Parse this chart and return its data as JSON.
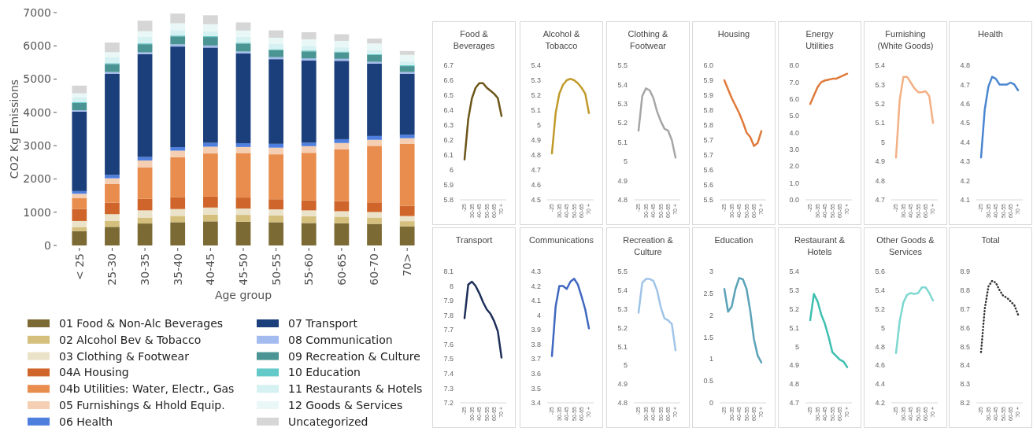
{
  "chart_data": [
    {
      "type": "bar",
      "stacked": true,
      "xlabel": "Age group",
      "ylabel": "CO2 Kg Emissions",
      "categories": [
        "< 25",
        "25-30",
        "30-35",
        "35-40",
        "40-45",
        "45-50",
        "50-55",
        "55-60",
        "60-65",
        "60-70",
        "70>"
      ],
      "ylim": [
        0,
        7000
      ],
      "yticks": [
        0,
        1000,
        2000,
        3000,
        4000,
        5000,
        6000,
        7000
      ],
      "legend": "bottom",
      "series": [
        {
          "name": "01 Food & Non-Alc Beverages",
          "color": "#7b6a34",
          "values": [
            430,
            560,
            660,
            700,
            725,
            715,
            700,
            675,
            665,
            650,
            575
          ]
        },
        {
          "name": "02 Alcohol Bev & Tobacco",
          "color": "#d4bf7d",
          "values": [
            125,
            175,
            180,
            190,
            200,
            205,
            205,
            205,
            200,
            190,
            155
          ]
        },
        {
          "name": "03 Clothing & Footwear",
          "color": "#ebe3c9",
          "values": [
            180,
            205,
            215,
            205,
            215,
            190,
            180,
            175,
            165,
            165,
            155
          ]
        },
        {
          "name": "04A Housing",
          "color": "#cf652a",
          "values": [
            365,
            345,
            345,
            360,
            330,
            330,
            305,
            305,
            305,
            290,
            305
          ]
        },
        {
          "name": "04b Utilities: Water, Electr., Gas",
          "color": "#e88d4d",
          "values": [
            330,
            560,
            950,
            1200,
            1295,
            1340,
            1350,
            1425,
            1550,
            1700,
            1870
          ]
        },
        {
          "name": "05 Furnishings & Hhold Equip.",
          "color": "#f5cfb3",
          "values": [
            125,
            175,
            205,
            195,
            205,
            180,
            200,
            200,
            195,
            180,
            165
          ]
        },
        {
          "name": "06 Health",
          "color": "#4f7fde",
          "values": [
            80,
            105,
            105,
            105,
            115,
            115,
            115,
            105,
            115,
            115,
            105
          ]
        },
        {
          "name": "07 Transport",
          "color": "#1b3f7b",
          "values": [
            2390,
            3040,
            3090,
            3025,
            2865,
            2700,
            2545,
            2470,
            2355,
            2180,
            1835
          ]
        },
        {
          "name": "08 Communication",
          "color": "#a3bbef",
          "values": [
            40,
            50,
            55,
            65,
            60,
            55,
            60,
            60,
            60,
            50,
            50
          ]
        },
        {
          "name": "09 Recreation & Culture",
          "color": "#4b9494",
          "values": [
            215,
            240,
            245,
            240,
            255,
            240,
            215,
            215,
            195,
            205,
            175
          ]
        },
        {
          "name": "10 Education",
          "color": "#63c9c9",
          "values": [
            25,
            25,
            25,
            25,
            25,
            25,
            25,
            25,
            25,
            25,
            25
          ]
        },
        {
          "name": "11 Restaurants & Hotels",
          "color": "#d6f1f2",
          "values": [
            155,
            180,
            200,
            165,
            155,
            175,
            155,
            140,
            125,
            115,
            115
          ]
        },
        {
          "name": "12 Goods & Services",
          "color": "#e9f7f7",
          "values": [
            115,
            150,
            165,
            205,
            205,
            190,
            190,
            195,
            195,
            205,
            200
          ]
        },
        {
          "name": "Uncategorized",
          "color": "#d6d6d6",
          "values": [
            230,
            290,
            315,
            290,
            270,
            245,
            220,
            215,
            200,
            150,
            115
          ]
        }
      ]
    },
    {
      "type": "line",
      "title": "Food & Beverages",
      "line_style": "solid",
      "categories": [
        "-25",
        null,
        "30-35",
        null,
        "40-45",
        null,
        "50-55",
        null,
        "60-65",
        null,
        "70 +"
      ],
      "ylim": [
        5.8,
        6.7
      ],
      "yticks": [
        5.8,
        5.9,
        6,
        6.1,
        6.2,
        6.3,
        6.4,
        6.5,
        6.6,
        6.7
      ],
      "series": [
        {
          "color": "#6b5518",
          "values": [
            6.07,
            6.34,
            6.48,
            6.55,
            6.58,
            6.58,
            6.55,
            6.53,
            6.51,
            6.48,
            6.36
          ]
        }
      ]
    },
    {
      "type": "line",
      "title": "Alcohol & Tobacco",
      "line_style": "solid",
      "categories": [
        "-25",
        null,
        "30-35",
        null,
        "40-45",
        null,
        "50-55",
        null,
        "60-65",
        null,
        "70 +"
      ],
      "ylim": [
        4.5,
        5.4
      ],
      "yticks": [
        4.5,
        4.6,
        4.7,
        4.8,
        4.9,
        5,
        5.1,
        5.2,
        5.3,
        5.4
      ],
      "series": [
        {
          "color": "#c09a2a",
          "values": [
            4.81,
            5.08,
            5.21,
            5.27,
            5.3,
            5.31,
            5.3,
            5.28,
            5.25,
            5.21,
            5.08
          ]
        }
      ]
    },
    {
      "type": "line",
      "title": "Clothing & Footwear",
      "line_style": "solid",
      "categories": [
        "-25",
        null,
        "30-35",
        null,
        "40-45",
        null,
        "50-55",
        null,
        "60-65",
        null,
        "70 +"
      ],
      "ylim": [
        4.8,
        5.5
      ],
      "yticks": [
        4.8,
        4.9,
        5,
        5.1,
        5.2,
        5.3,
        5.4,
        5.5
      ],
      "series": [
        {
          "color": "#a6a6a6",
          "values": [
            5.16,
            5.34,
            5.38,
            5.37,
            5.33,
            5.26,
            5.21,
            5.17,
            5.16,
            5.11,
            5.02
          ]
        }
      ]
    },
    {
      "type": "line",
      "title": "Housing",
      "line_style": "solid",
      "categories": [
        "-25",
        null,
        "30-35",
        null,
        "40-45",
        null,
        "50-55",
        null,
        "60-65",
        null,
        "70 +"
      ],
      "ylim": [
        5.5,
        5.95
      ],
      "yticks": [
        5.5,
        {
          "value": 5.55,
          "label": "5.6"
        },
        {
          "value": 5.6,
          "label": "5.6"
        },
        {
          "value": 5.65,
          "label": "5.7"
        },
        {
          "value": 5.7,
          "label": "5.7"
        },
        {
          "value": 5.75,
          "label": "5.8"
        },
        {
          "value": 5.8,
          "label": "5.8"
        },
        {
          "value": 5.85,
          "label": "5.9"
        },
        {
          "value": 5.9,
          "label": "5.9"
        },
        {
          "value": 5.95,
          "label": "6.0"
        }
      ],
      "series": [
        {
          "color": "#e07a3a",
          "values": [
            5.9,
            5.87,
            5.84,
            5.815,
            5.79,
            5.76,
            5.725,
            5.71,
            5.68,
            5.69,
            5.73
          ]
        }
      ]
    },
    {
      "type": "line",
      "title": "Energy Utilities",
      "line_style": "solid",
      "categories": [
        "-25",
        null,
        "30-35",
        null,
        "40-45",
        null,
        "50-55",
        null,
        "60-65",
        null,
        "70 +"
      ],
      "ylim": [
        0,
        8
      ],
      "yticks": [
        {
          "value": 0,
          "label": "0.0"
        },
        {
          "value": 1,
          "label": "1.0"
        },
        {
          "value": 2,
          "label": "2.0"
        },
        {
          "value": 3,
          "label": "3.0"
        },
        {
          "value": 4,
          "label": "4.0"
        },
        {
          "value": 5,
          "label": "5.0"
        },
        {
          "value": 6,
          "label": "6.0"
        },
        {
          "value": 7,
          "label": "7.0"
        },
        {
          "value": 8,
          "label": "8.0"
        }
      ],
      "series": [
        {
          "color": "#e07a3a",
          "values": [
            5.7,
            6.2,
            6.7,
            7,
            7.1,
            7.15,
            7.2,
            7.2,
            7.3,
            7.4,
            7.5
          ]
        }
      ]
    },
    {
      "type": "line",
      "title": "Furnishing (White Goods)",
      "line_style": "solid",
      "categories": [
        "-25",
        null,
        "30-35",
        null,
        "40-45",
        null,
        "50-55",
        null,
        "60-65",
        null,
        "70 +"
      ],
      "ylim": [
        4.7,
        5.4
      ],
      "yticks": [
        4.7,
        4.8,
        4.9,
        5,
        5.1,
        5.2,
        5.3,
        5.4
      ],
      "series": [
        {
          "color": "#f2b084",
          "values": [
            4.92,
            5.22,
            5.34,
            5.34,
            5.31,
            5.28,
            5.26,
            5.26,
            5.265,
            5.24,
            5.1
          ]
        }
      ]
    },
    {
      "type": "line",
      "title": "Health",
      "line_style": "solid",
      "categories": [
        "-25",
        null,
        "30-35",
        null,
        "40-45",
        null,
        "50-55",
        null,
        "60-65",
        null,
        "70 +"
      ],
      "ylim": [
        4.1,
        4.8
      ],
      "yticks": [
        4.1,
        4.2,
        4.3,
        4.4,
        4.5,
        4.6,
        4.7,
        4.8
      ],
      "series": [
        {
          "color": "#4a86d0",
          "values": [
            4.32,
            4.57,
            4.69,
            4.74,
            4.73,
            4.7,
            4.7,
            4.7,
            4.71,
            4.7,
            4.67
          ]
        }
      ]
    },
    {
      "type": "line",
      "title": "Transport",
      "line_style": "solid",
      "categories": [
        "-25",
        null,
        "30-35",
        null,
        "40-45",
        null,
        "50-55",
        null,
        "60-65",
        null,
        "70 +"
      ],
      "ylim": [
        7.2,
        8.1
      ],
      "yticks": [
        7.2,
        7.3,
        7.4,
        7.5,
        7.6,
        7.7,
        7.8,
        7.9,
        8,
        8.1
      ],
      "series": [
        {
          "color": "#1f2f5a",
          "values": [
            7.78,
            8.01,
            8.03,
            8,
            7.95,
            7.89,
            7.84,
            7.81,
            7.76,
            7.69,
            7.51
          ]
        }
      ]
    },
    {
      "type": "line",
      "title": "Communications",
      "line_style": "solid",
      "categories": [
        "-25",
        null,
        "30-35",
        null,
        "40-45",
        null,
        "50-55",
        null,
        "60-65",
        null,
        "70 +"
      ],
      "ylim": [
        3.4,
        4.3
      ],
      "yticks": [
        3.4,
        3.5,
        3.6,
        3.7,
        3.8,
        3.9,
        4,
        4.1,
        4.2,
        4.3
      ],
      "series": [
        {
          "color": "#4068c0",
          "values": [
            3.72,
            4.06,
            4.2,
            4.2,
            4.18,
            4.23,
            4.25,
            4.21,
            4.13,
            4.04,
            3.91
          ]
        }
      ]
    },
    {
      "type": "line",
      "title": "Recreation & Culture",
      "line_style": "solid",
      "categories": [
        "-25",
        null,
        "30-35",
        null,
        "40-45",
        null,
        "50-55",
        null,
        "60-65",
        null,
        "70 +"
      ],
      "ylim": [
        4.8,
        5.5
      ],
      "yticks": [
        4.8,
        4.9,
        5,
        5.1,
        5.2,
        5.3,
        5.4,
        5.5
      ],
      "series": [
        {
          "color": "#a0c4e8",
          "values": [
            5.28,
            5.44,
            5.46,
            5.46,
            5.45,
            5.4,
            5.31,
            5.25,
            5.24,
            5.22,
            5.08
          ]
        }
      ]
    },
    {
      "type": "line",
      "title": "Education",
      "line_style": "solid",
      "categories": [
        "-25",
        null,
        "30-35",
        null,
        "40-45",
        null,
        "50-55",
        null,
        "60-65",
        null,
        "70 +"
      ],
      "ylim": [
        0,
        3
      ],
      "yticks": [
        0,
        0.5,
        1,
        1.5,
        2,
        2.5,
        3
      ],
      "series": [
        {
          "color": "#5aa2b8",
          "values": [
            2.6,
            2.08,
            2.2,
            2.6,
            2.85,
            2.82,
            2.6,
            2.1,
            1.45,
            1.08,
            0.92
          ]
        }
      ]
    },
    {
      "type": "line",
      "title": "Restaurant & Hotels",
      "line_style": "solid",
      "categories": [
        "-25",
        null,
        "30-35",
        null,
        "40-45",
        null,
        "50-55",
        null,
        "60-65",
        null,
        "70 +"
      ],
      "ylim": [
        4.7,
        5.4
      ],
      "yticks": [
        4.7,
        4.8,
        4.9,
        5,
        5.1,
        5.2,
        5.3,
        5.4
      ],
      "series": [
        {
          "color": "#3ebfb0",
          "values": [
            5.14,
            5.28,
            5.24,
            5.17,
            5.12,
            5.05,
            4.97,
            4.95,
            4.93,
            4.92,
            4.89
          ]
        }
      ]
    },
    {
      "type": "line",
      "title": "Other Goods & Services",
      "line_style": "solid",
      "categories": [
        "-25",
        null,
        "30-35",
        null,
        "40-45",
        null,
        "50-55",
        null,
        "60-65",
        null,
        "70 +"
      ],
      "ylim": [
        4.2,
        5.6
      ],
      "yticks": [
        4.2,
        4.4,
        4.6,
        4.8,
        5,
        5.2,
        5.4,
        5.6
      ],
      "series": [
        {
          "color": "#7dd8d0",
          "values": [
            4.73,
            5.07,
            5.27,
            5.35,
            5.37,
            5.36,
            5.37,
            5.43,
            5.43,
            5.37,
            5.29
          ]
        }
      ]
    },
    {
      "type": "line",
      "title": "Total",
      "line_style": "dotted",
      "categories": [
        "-25",
        null,
        "30-35",
        null,
        "40-45",
        null,
        "50-55",
        null,
        "60-65",
        null,
        "70 +"
      ],
      "ylim": [
        8.2,
        8.9
      ],
      "yticks": [
        8.2,
        8.3,
        8.4,
        8.5,
        8.6,
        8.7,
        8.8,
        8.9
      ],
      "series": [
        {
          "color": "#333333",
          "values": [
            8.47,
            8.7,
            8.82,
            8.85,
            8.84,
            8.8,
            8.77,
            8.76,
            8.74,
            8.72,
            8.67
          ]
        }
      ]
    }
  ]
}
